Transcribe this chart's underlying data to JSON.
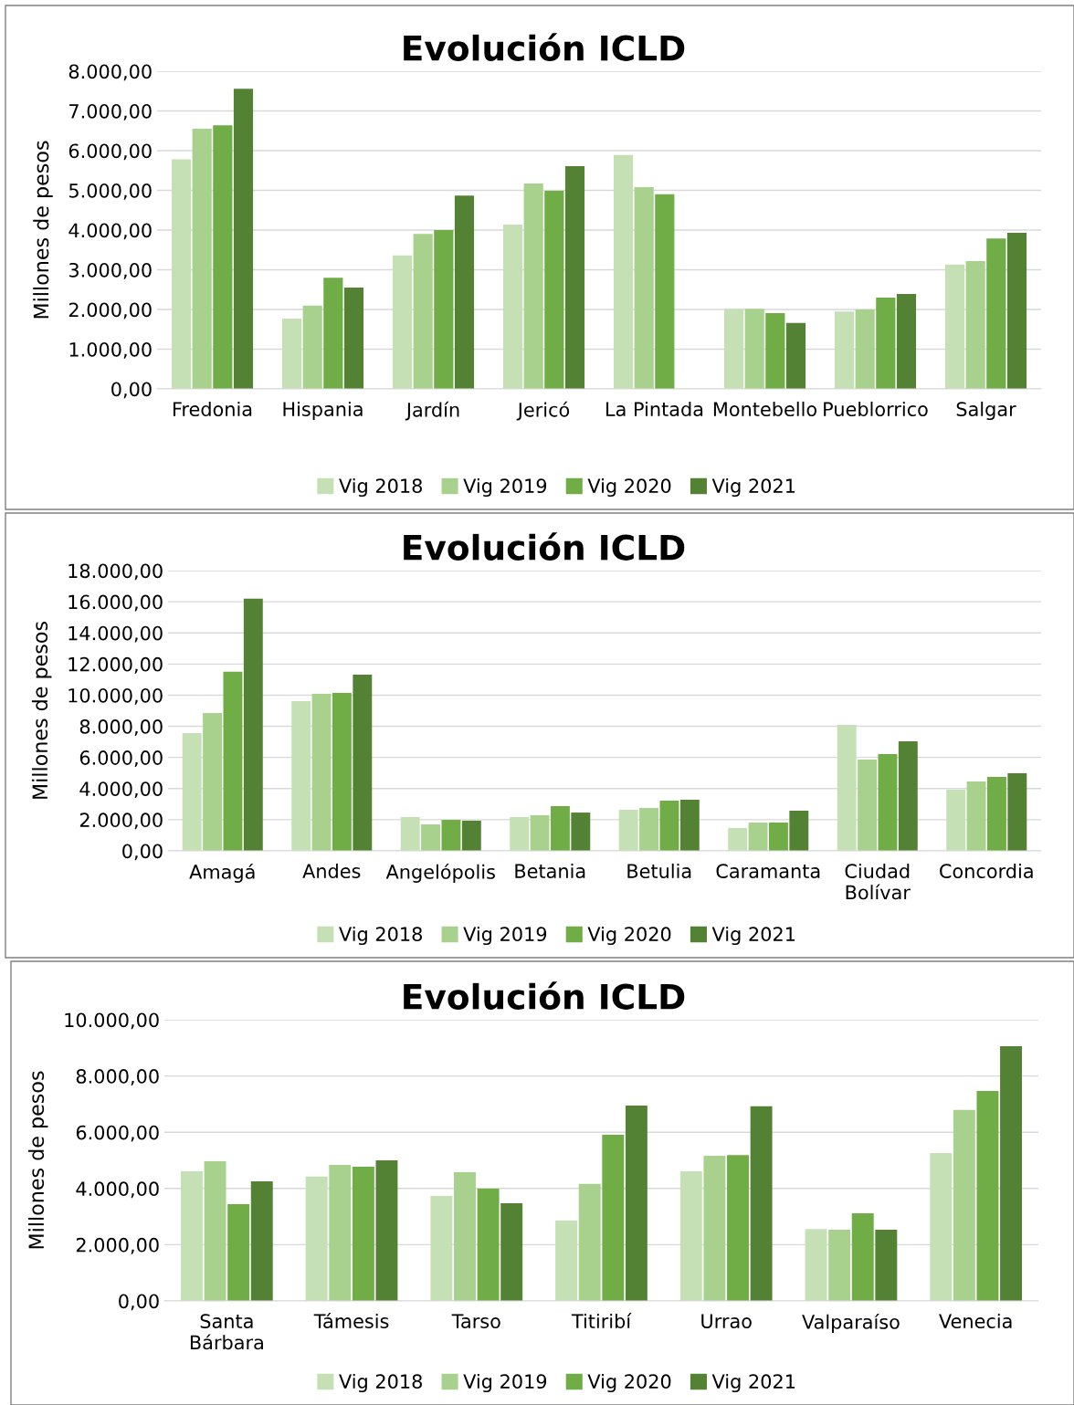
{
  "chart_data": [
    {
      "type": "bar",
      "title": "Evolución ICLD",
      "ylabel": "Millones de pesos",
      "categories": [
        "Fredonia",
        "Hispania",
        "Jardín",
        "Jericó",
        "La Pintada",
        "Montebello",
        "Pueblorrico",
        "Salgar"
      ],
      "series": [
        {
          "name": "Vig 2018",
          "color": "#c5e0b4",
          "values": [
            5780,
            1770,
            3360,
            4140,
            5890,
            2020,
            1950,
            3130
          ]
        },
        {
          "name": "Vig 2019",
          "color": "#a9d18e",
          "values": [
            6550,
            2100,
            3900,
            5170,
            5080,
            2020,
            2000,
            3220
          ]
        },
        {
          "name": "Vig 2020",
          "color": "#70ad47",
          "values": [
            6640,
            2800,
            4000,
            4990,
            4900,
            1910,
            2300,
            3790
          ]
        },
        {
          "name": "Vig 2021",
          "color": "#548235",
          "values": [
            7560,
            2550,
            4870,
            5610,
            null,
            1660,
            2390,
            3930
          ]
        }
      ],
      "ylim": [
        0,
        8000
      ],
      "yticks": [
        {
          "value": 0,
          "label": "0,00"
        },
        {
          "value": 1000,
          "label": "1.000,00"
        },
        {
          "value": 2000,
          "label": "2.000,00"
        },
        {
          "value": 3000,
          "label": "3.000,00"
        },
        {
          "value": 4000,
          "label": "4.000,00"
        },
        {
          "value": 5000,
          "label": "5.000,00"
        },
        {
          "value": 6000,
          "label": "6.000,00"
        },
        {
          "value": 7000,
          "label": "7.000,00"
        },
        {
          "value": 8000,
          "label": "8.000,00"
        }
      ],
      "grid": "y",
      "legend": "bottom"
    },
    {
      "type": "bar",
      "title": "Evolución ICLD",
      "ylabel": "Millones de pesos",
      "categories": [
        "Amagá",
        "Andes",
        "Angelópolis",
        "Betania",
        "Betulia",
        "Caramanta",
        "Ciudad\nBolívar",
        "Concordia"
      ],
      "series": [
        {
          "name": "Vig 2018",
          "color": "#c5e0b4",
          "values": [
            7570,
            9620,
            2170,
            2170,
            2640,
            1470,
            8090,
            3930
          ]
        },
        {
          "name": "Vig 2019",
          "color": "#a9d18e",
          "values": [
            8860,
            10090,
            1700,
            2290,
            2760,
            1820,
            5870,
            4460
          ]
        },
        {
          "name": "Vig 2020",
          "color": "#70ad47",
          "values": [
            11500,
            10150,
            1990,
            2870,
            3230,
            1820,
            6220,
            4750
          ]
        },
        {
          "name": "Vig 2021",
          "color": "#548235",
          "values": [
            16190,
            11320,
            1940,
            2460,
            3280,
            2580,
            7040,
            4990
          ]
        }
      ],
      "ylim": [
        0,
        18000
      ],
      "yticks": [
        {
          "value": 0,
          "label": "0,00"
        },
        {
          "value": 2000,
          "label": "2.000,00"
        },
        {
          "value": 4000,
          "label": "4.000,00"
        },
        {
          "value": 6000,
          "label": "6.000,00"
        },
        {
          "value": 8000,
          "label": "8.000,00"
        },
        {
          "value": 10000,
          "label": "10.000,00"
        },
        {
          "value": 12000,
          "label": "12.000,00"
        },
        {
          "value": 14000,
          "label": "14.000,00"
        },
        {
          "value": 16000,
          "label": "16.000,00"
        },
        {
          "value": 18000,
          "label": "18.000,00"
        }
      ],
      "grid": "y",
      "legend": "bottom"
    },
    {
      "type": "bar",
      "title": "Evolución ICLD",
      "ylabel": "Millones de pesos",
      "categories": [
        "Santa\nBárbara",
        "Támesis",
        "Tarso",
        "Titiribí",
        "Urrao",
        "Valparaíso",
        "Venecia"
      ],
      "series": [
        {
          "name": "Vig 2018",
          "color": "#c5e0b4",
          "values": [
            4610,
            4420,
            3730,
            2860,
            4610,
            2560,
            5260
          ]
        },
        {
          "name": "Vig 2019",
          "color": "#a9d18e",
          "values": [
            4970,
            4840,
            4580,
            4160,
            5160,
            2530,
            6790
          ]
        },
        {
          "name": "Vig 2020",
          "color": "#70ad47",
          "values": [
            3440,
            4770,
            3990,
            5910,
            5190,
            3120,
            7470
          ]
        },
        {
          "name": "Vig 2021",
          "color": "#548235",
          "values": [
            4250,
            5000,
            3470,
            6950,
            6920,
            2530,
            9060
          ]
        }
      ],
      "ylim": [
        0,
        10000
      ],
      "yticks": [
        {
          "value": 0,
          "label": "0,00"
        },
        {
          "value": 2000,
          "label": "2.000,00"
        },
        {
          "value": 4000,
          "label": "4.000,00"
        },
        {
          "value": 6000,
          "label": "6.000,00"
        },
        {
          "value": 8000,
          "label": "8.000,00"
        },
        {
          "value": 10000,
          "label": "10.000,00"
        }
      ],
      "grid": "y",
      "legend": "bottom"
    }
  ]
}
